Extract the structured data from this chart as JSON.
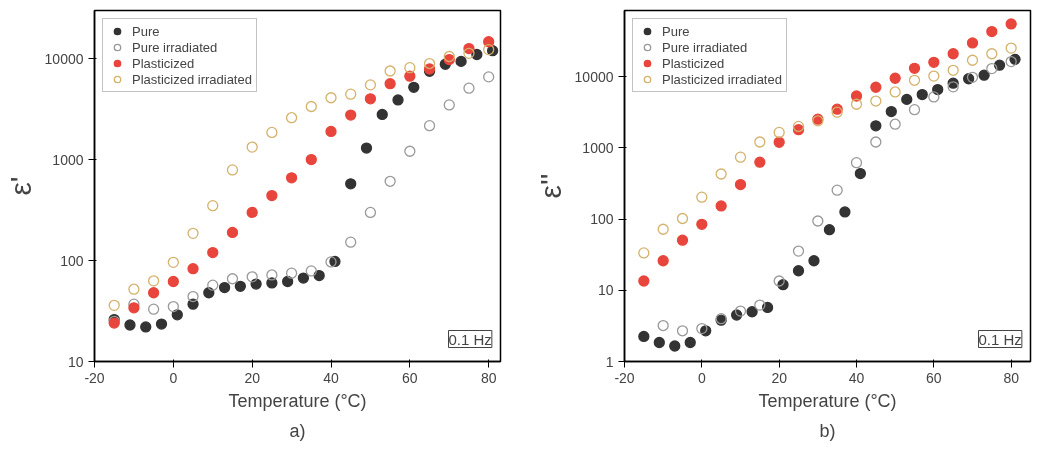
{
  "chart_data": [
    {
      "type": "scatter",
      "xlabel": "Temperature (°C)",
      "ylabel": "ε'",
      "log": "y",
      "xlim": [
        -20,
        83
      ],
      "ylim": [
        10,
        30000
      ],
      "xticks": [
        -20,
        0,
        20,
        40,
        60,
        80
      ],
      "yticks": [
        10,
        100,
        1000,
        10000
      ],
      "legend": "top left",
      "marker": "circle",
      "annotations": [
        "0.1 Hz",
        "a)"
      ],
      "series": [
        {
          "name": "Pure",
          "color": "#333333",
          "x": [
            -15,
            -11,
            -7,
            -3,
            1,
            5,
            9,
            13,
            17,
            21,
            25,
            29,
            33,
            37,
            41,
            45,
            49,
            53,
            57,
            61,
            65,
            69,
            73,
            77,
            81
          ],
          "values": [
            26,
            23,
            22,
            23.5,
            29,
            37,
            48,
            54,
            55.5,
            58.5,
            60,
            62,
            67,
            71,
            98,
            575,
            1300,
            2800,
            3900,
            5200,
            7500,
            8800,
            9400,
            11000,
            12000
          ]
        },
        {
          "name": "Pure irradiated",
          "color": "#999999",
          "x": [
            -15,
            -10,
            -5,
            0,
            5,
            10,
            15,
            20,
            25,
            30,
            35,
            40,
            45,
            50,
            55,
            60,
            65,
            70,
            75,
            80
          ],
          "values": [
            25,
            37,
            33,
            35,
            44,
            57,
            66,
            69,
            72,
            75,
            79,
            97,
            152,
            300,
            610,
            1210,
            2170,
            3480,
            5100,
            6600
          ]
        },
        {
          "name": "Plasticized",
          "color": "#e8453c",
          "x": [
            -15,
            -10,
            -5,
            0,
            5,
            10,
            15,
            20,
            25,
            30,
            35,
            40,
            45,
            50,
            55,
            60,
            65,
            70,
            75,
            80
          ],
          "values": [
            24,
            34,
            48,
            62,
            83,
            120,
            190,
            300,
            440,
            660,
            1000,
            1900,
            2760,
            4000,
            5650,
            6700,
            7900,
            9800,
            12600,
            14700
          ]
        },
        {
          "name": "Plasticized irradiated",
          "color": "#d4b26a",
          "x": [
            -15,
            -10,
            -5,
            0,
            5,
            10,
            15,
            20,
            25,
            30,
            35,
            40,
            45,
            50,
            55,
            60,
            65,
            70,
            75,
            80
          ],
          "values": [
            36,
            52,
            63,
            96,
            186,
            350,
            790,
            1330,
            1860,
            2600,
            3360,
            4100,
            4450,
            5500,
            7550,
            8150,
            8950,
            10500,
            11300,
            12300
          ]
        }
      ]
    },
    {
      "type": "scatter",
      "xlabel": "Temperature (°C)",
      "ylabel": "ε''",
      "log": "y",
      "xlim": [
        -20,
        85
      ],
      "ylim": [
        1,
        85000
      ],
      "xticks": [
        -20,
        0,
        20,
        40,
        60,
        80
      ],
      "yticks": [
        1,
        10,
        100,
        1000,
        10000
      ],
      "legend": "top left",
      "marker": "circle",
      "annotations": [
        "0.1 Hz",
        "b)"
      ],
      "series": [
        {
          "name": "Pure",
          "color": "#333333",
          "x": [
            -15,
            -11,
            -7,
            -3,
            1,
            5,
            9,
            13,
            17,
            21,
            25,
            29,
            33,
            37,
            41,
            45,
            49,
            53,
            57,
            61,
            65,
            69,
            73,
            77,
            81
          ],
          "values": [
            2.25,
            1.85,
            1.65,
            1.85,
            2.7,
            3.8,
            4.5,
            5.0,
            5.75,
            12,
            18.8,
            26,
            71,
            126,
            436,
            2040,
            3240,
            4800,
            5600,
            6600,
            8100,
            9350,
            10500,
            14500,
            17500
          ]
        },
        {
          "name": "Pure irradiated",
          "color": "#999999",
          "x": [
            -10,
            -5,
            0,
            5,
            10,
            15,
            20,
            25,
            30,
            35,
            40,
            45,
            50,
            55,
            60,
            65,
            70,
            75,
            80
          ],
          "values": [
            3.2,
            2.7,
            2.9,
            4.0,
            5.1,
            6.2,
            13.5,
            35.5,
            94,
            255,
            620,
            1210,
            2150,
            3440,
            5200,
            7200,
            9800,
            13000,
            16300
          ]
        },
        {
          "name": "Plasticized",
          "color": "#e8453c",
          "x": [
            -15,
            -10,
            -5,
            0,
            5,
            10,
            15,
            20,
            25,
            30,
            35,
            40,
            45,
            50,
            55,
            60,
            65,
            70,
            75,
            80
          ],
          "values": [
            13.5,
            26,
            50.5,
            84.5,
            153,
            305,
            630,
            1200,
            1800,
            2530,
            3500,
            5350,
            7100,
            9500,
            13100,
            15900,
            21000,
            29800,
            43000,
            55000
          ]
        },
        {
          "name": "Plasticized irradiated",
          "color": "#d4b26a",
          "x": [
            -15,
            -10,
            -5,
            0,
            5,
            10,
            15,
            20,
            25,
            30,
            35,
            40,
            45,
            50,
            55,
            60,
            65,
            70,
            75,
            80
          ],
          "values": [
            33.5,
            72,
            102,
            203,
            430,
            740,
            1210,
            1650,
            2000,
            2400,
            3170,
            4100,
            4550,
            6100,
            8900,
            10200,
            12300,
            17000,
            21000,
            25200
          ]
        }
      ]
    }
  ]
}
